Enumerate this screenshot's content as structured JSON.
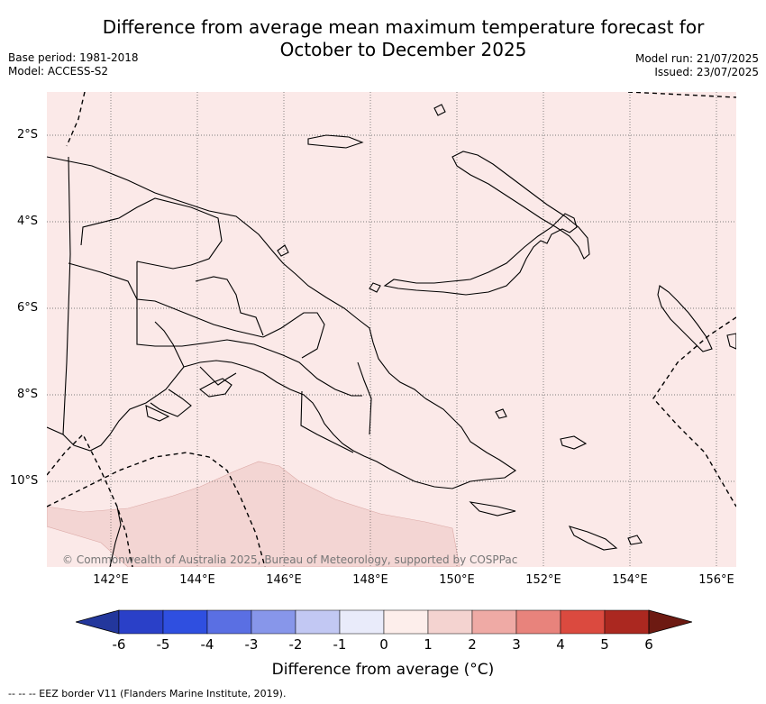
{
  "title": {
    "line1": "Difference from average mean maximum temperature forecast for",
    "line2": "October to December 2025"
  },
  "meta": {
    "base_period": "Base period: 1981-2018",
    "model": "Model: ACCESS-S2",
    "model_run": "Model run: 21/07/2025",
    "issued": "Issued: 23/07/2025"
  },
  "map": {
    "background_color": "#fbe9e8",
    "shaded_region_color": "#f3d5d3",
    "lat_labels": [
      "2°S",
      "4°S",
      "6°S",
      "8°S",
      "10°S"
    ],
    "lon_labels": [
      "142°E",
      "144°E",
      "146°E",
      "148°E",
      "150°E",
      "152°E",
      "154°E",
      "156°E"
    ],
    "copyright": "© Commonwealth of Australia 2025, Bureau of Meteorology, supported by COSPPac"
  },
  "colorbar": {
    "colors": [
      "#23379c",
      "#2a40c8",
      "#2f4fe0",
      "#5a6fe3",
      "#8796ea",
      "#c2c8f3",
      "#e9ebfa",
      "#fdeeeb",
      "#f4d3d0",
      "#efaaa5",
      "#e8837c",
      "#db4a3f",
      "#ab2820",
      "#6d1a12"
    ],
    "ticks": [
      "-6",
      "-5",
      "-4",
      "-3",
      "-2",
      "-1",
      "0",
      "1",
      "2",
      "3",
      "4",
      "5",
      "6"
    ],
    "label": "Difference from average (°C)"
  },
  "footnote": "--  --  -- EEZ border V11 (Flanders Marine Institute, 2019)."
}
